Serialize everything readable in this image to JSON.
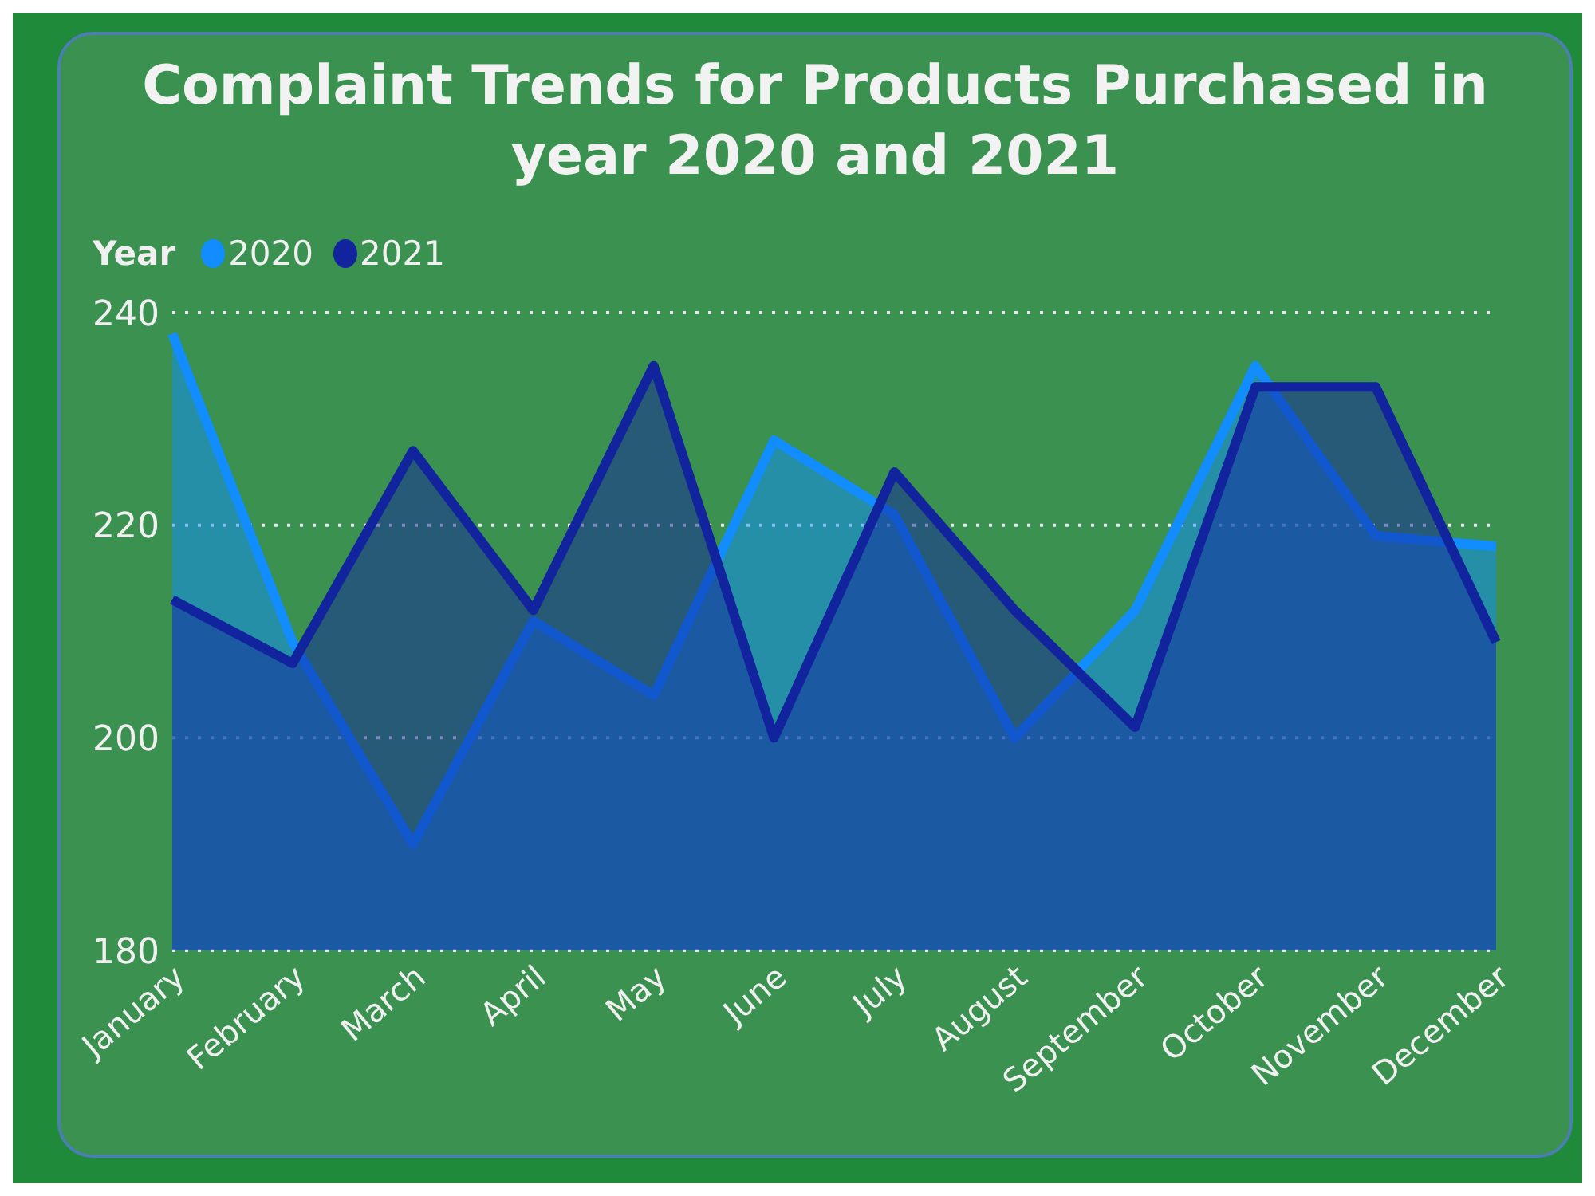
{
  "chart_data": {
    "type": "area",
    "title": "Complaint Trends for Products Purchased in year 2020 and 2021",
    "legend_title": "Year",
    "categories": [
      "January",
      "February",
      "March",
      "April",
      "May",
      "June",
      "July",
      "August",
      "September",
      "October",
      "November",
      "December"
    ],
    "series": [
      {
        "name": "2020",
        "color": "#118dff",
        "values": [
          238,
          209,
          190,
          211,
          204,
          228,
          221,
          200,
          212,
          235,
          219,
          218
        ]
      },
      {
        "name": "2021",
        "color": "#12239e",
        "values": [
          213,
          207,
          227,
          212,
          235,
          200,
          225,
          212,
          201,
          233,
          233,
          209
        ]
      }
    ],
    "ylim": [
      180,
      240
    ],
    "yticks": [
      180,
      200,
      220,
      240
    ],
    "grid": "y",
    "legend": "top left",
    "line_style": "solid",
    "marker": "none"
  }
}
